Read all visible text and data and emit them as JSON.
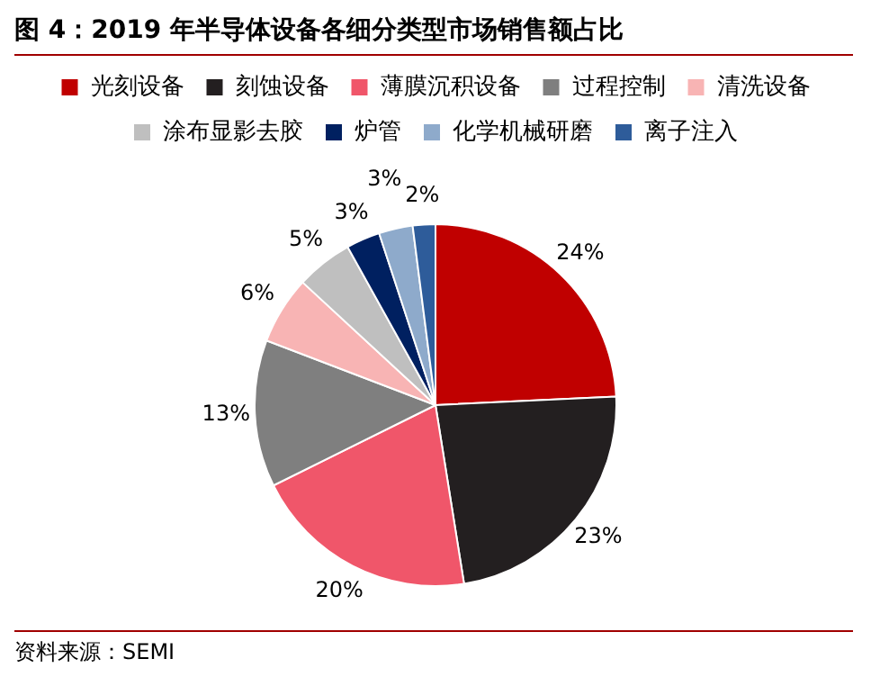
{
  "chart_data": {
    "type": "pie",
    "title": "图 4：2019 年半导体设备各细分类型市场销售额占比",
    "categories": [
      "光刻设备",
      "刻蚀设备",
      "薄膜沉积设备",
      "过程控制",
      "清洗设备",
      "涂布显影去胶",
      "炉管",
      "化学机械研磨",
      "离子注入"
    ],
    "values": [
      24,
      23,
      20,
      13,
      6,
      5,
      3,
      3,
      2
    ],
    "colors": [
      "#c00000",
      "#231f20",
      "#f0566a",
      "#7f7f7f",
      "#f8b4b4",
      "#bfbfbf",
      "#002060",
      "#8eaacb",
      "#2e5c9a"
    ],
    "value_labels": [
      "24%",
      "23%",
      "20%",
      "13%",
      "6%",
      "5%",
      "3%",
      "3%",
      "2%"
    ],
    "legend": "top",
    "annotations": [
      "资料来源：SEMI"
    ]
  }
}
